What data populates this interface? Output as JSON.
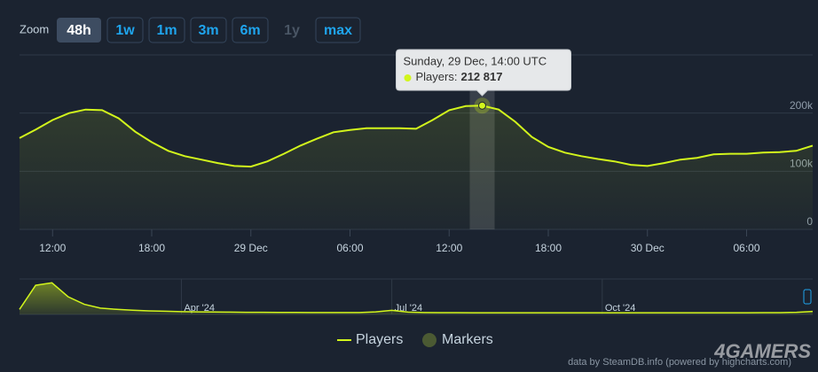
{
  "zoom": {
    "label": "Zoom",
    "buttons": [
      "48h",
      "1w",
      "1m",
      "3m",
      "6m",
      "1y",
      "max"
    ],
    "active": "48h",
    "disabled": [
      "1y"
    ]
  },
  "chart_data": [
    {
      "type": "line",
      "categories": [
        null,
        null,
        "12:00",
        null,
        null,
        null,
        null,
        null,
        "18:00",
        null,
        null,
        null,
        null,
        null,
        "29 Dec",
        null,
        null,
        null,
        null,
        null,
        "06:00",
        null,
        null,
        null,
        null,
        null,
        "12:00",
        null,
        null,
        null,
        null,
        null,
        "18:00",
        null,
        null,
        null,
        null,
        null,
        "30 Dec",
        null,
        null,
        null,
        null,
        null,
        "06:00",
        null,
        null,
        null,
        null
      ],
      "series": [
        {
          "name": "Players",
          "color": "#d2f51c",
          "values": [
            157000,
            172000,
            188000,
            200000,
            206000,
            205000,
            191000,
            168000,
            150000,
            135000,
            126000,
            120000,
            114000,
            109000,
            108000,
            117000,
            130000,
            144000,
            156000,
            167000,
            171000,
            174000,
            174000,
            174000,
            173000,
            188000,
            205000,
            212000,
            212817,
            206000,
            185000,
            159000,
            142000,
            132000,
            126000,
            121000,
            117000,
            111000,
            109000,
            114000,
            120000,
            123000,
            129000,
            130000,
            130000,
            132000,
            133000,
            135000,
            144000
          ]
        }
      ],
      "markers": {
        "name": "Markers",
        "color": "#4b5a33"
      },
      "ylim": [
        0,
        300000
      ],
      "yticks": [
        0,
        {
          "value": 100000,
          "label": "100k"
        },
        {
          "value": 200000,
          "label": "200k"
        }
      ],
      "grid": true,
      "tooltip": {
        "title": "Sunday, 29 Dec, 14:00 UTC",
        "label": "Players:",
        "value": 212817,
        "value_label": "212 817"
      }
    },
    {
      "type": "area",
      "categories": [
        null,
        null,
        null,
        null,
        null,
        null,
        null,
        null,
        null,
        null,
        "Apr '24",
        null,
        null,
        null,
        null,
        null,
        null,
        null,
        null,
        null,
        null,
        null,
        null,
        "Jul '24",
        null,
        null,
        null,
        null,
        null,
        null,
        null,
        null,
        null,
        null,
        null,
        null,
        "Oct '24",
        null,
        null,
        null,
        null,
        null,
        null,
        null,
        null,
        null,
        null,
        null,
        null,
        null
      ],
      "series": [
        {
          "name": "Players",
          "color": "#d2f51c",
          "values": [
            400000,
            2300000,
            2500000,
            1400000,
            800000,
            500000,
            400000,
            330000,
            280000,
            250000,
            220000,
            200000,
            190000,
            180000,
            170000,
            165000,
            160000,
            155000,
            150000,
            150000,
            145000,
            150000,
            200000,
            320000,
            180000,
            150000,
            140000,
            138000,
            136000,
            135000,
            134000,
            133000,
            132000,
            132000,
            131000,
            130000,
            130000,
            130000,
            131000,
            132000,
            132000,
            133000,
            134000,
            135000,
            135000,
            136000,
            138000,
            140000,
            170000,
            240000
          ]
        }
      ],
      "ylim": [
        0,
        2800000
      ]
    }
  ],
  "credit": "data by SteamDB.info (powered by highcharts.com)",
  "watermark": "4GAMERS"
}
